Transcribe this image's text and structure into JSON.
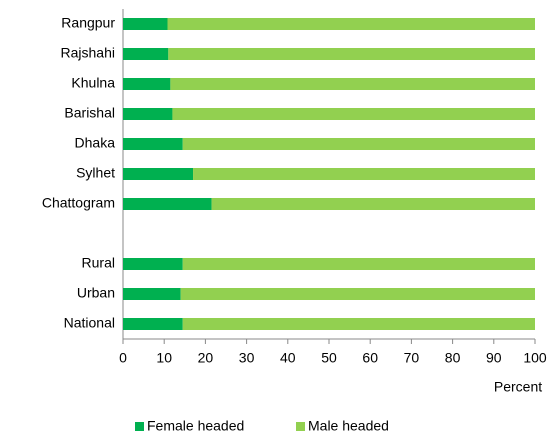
{
  "chart_data": {
    "type": "stacked_barh",
    "categories": [
      "Rangpur",
      "Rajshahi",
      "Khulna",
      "Barishal",
      "Dhaka",
      "Sylhet",
      "Chattogram",
      null,
      "Rural",
      "Urban",
      "National"
    ],
    "series": [
      {
        "name": "Female headed",
        "color": "#00b050",
        "values": [
          10.8,
          11,
          11.5,
          12,
          14.5,
          17,
          21.5,
          null,
          14.5,
          14,
          14.5
        ]
      },
      {
        "name": "Male headed",
        "color": "#92d050",
        "values": [
          89.2,
          89,
          88.5,
          88,
          85.5,
          83,
          78.5,
          null,
          85.5,
          86,
          85.5
        ]
      }
    ],
    "xlabel": "Percent",
    "xlim": [
      0,
      100
    ],
    "xticks": [
      0,
      10,
      20,
      30,
      40,
      50,
      60,
      70,
      80,
      90,
      100
    ],
    "grid": false,
    "legend": "bottom"
  }
}
